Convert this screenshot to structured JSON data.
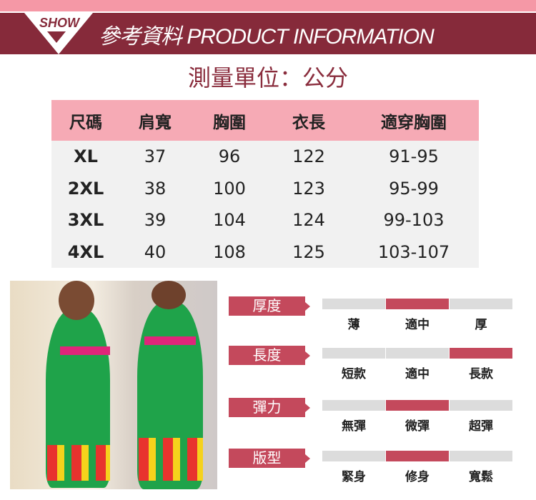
{
  "header": {
    "badge": "SHOW",
    "title": "參考資料 PRODUCT INFORMATION"
  },
  "unit_note": "測量單位：公分",
  "size_table": {
    "headers": [
      "尺碼",
      "肩寬",
      "胸圍",
      "衣長",
      "適穿胸圍"
    ],
    "rows": [
      [
        "XL",
        "37",
        "96",
        "122",
        "91-95"
      ],
      [
        "2XL",
        "38",
        "100",
        "123",
        "95-99"
      ],
      [
        "3XL",
        "39",
        "104",
        "124",
        "99-103"
      ],
      [
        "4XL",
        "40",
        "108",
        "125",
        "103-107"
      ]
    ]
  },
  "attributes": [
    {
      "label": "厚度",
      "options": [
        "薄",
        "適中",
        "厚"
      ],
      "selected": 1
    },
    {
      "label": "長度",
      "options": [
        "短款",
        "適中",
        "長款"
      ],
      "selected": 2
    },
    {
      "label": "彈力",
      "options": [
        "無彈",
        "微彈",
        "超彈"
      ],
      "selected": 1
    },
    {
      "label": "版型",
      "options": [
        "緊身",
        "修身",
        "寬鬆"
      ],
      "selected": 1
    }
  ],
  "colors": {
    "accent": "#c4495c",
    "band": "#862a3a",
    "header_pink": "#f6aab5",
    "dress_green": "#1fa34a"
  }
}
